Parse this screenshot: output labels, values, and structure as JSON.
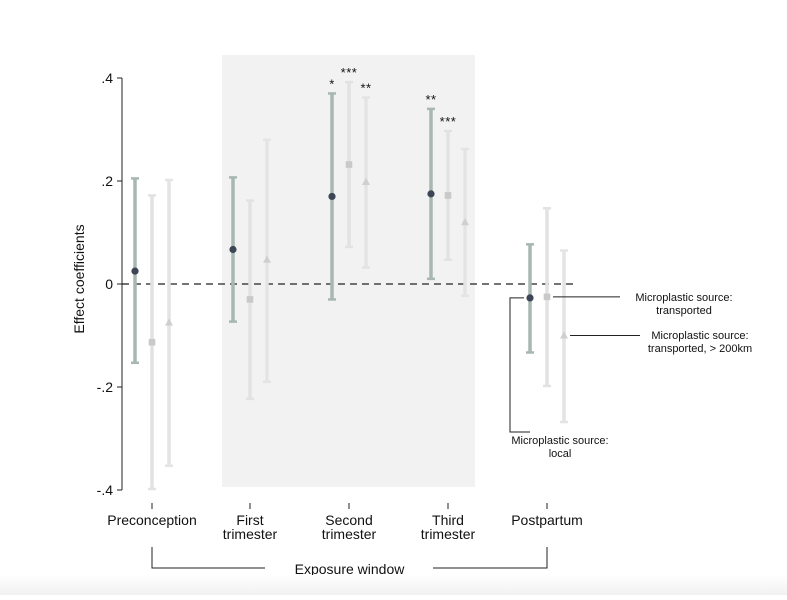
{
  "chart_data": {
    "type": "errorbar",
    "title": "",
    "xlabel": "Exposure window",
    "ylabel": "Effect coefficients",
    "ylim": [
      -0.4,
      0.4
    ],
    "yticks": [
      {
        "value": 0.4,
        "label": ".4"
      },
      {
        "value": 0.2,
        "label": ".2"
      },
      {
        "value": 0.0,
        "label": "0"
      },
      {
        "value": -0.2,
        "label": "-.2"
      },
      {
        "value": -0.4,
        "label": "-.4"
      }
    ],
    "categories": [
      {
        "lines": [
          "Preconception"
        ]
      },
      {
        "lines": [
          "First",
          "trimester"
        ]
      },
      {
        "lines": [
          "Second",
          "trimester"
        ]
      },
      {
        "lines": [
          "Third",
          "trimester"
        ]
      },
      {
        "lines": [
          "Postpartum"
        ]
      }
    ],
    "shaded_categories": [
      1,
      3
    ],
    "reference_line": 0,
    "series": [
      {
        "name": "Microplastic source: local",
        "marker": "circle",
        "color": "#3d4656",
        "bar_color": "#a7b7b1",
        "points": [
          {
            "y": 0.025,
            "lo": -0.153,
            "hi": 0.205,
            "sig": ""
          },
          {
            "y": 0.067,
            "lo": -0.073,
            "hi": 0.207,
            "sig": ""
          },
          {
            "y": 0.17,
            "lo": -0.03,
            "hi": 0.37,
            "sig": "*"
          },
          {
            "y": 0.175,
            "lo": 0.01,
            "hi": 0.34,
            "sig": "**"
          },
          {
            "y": -0.027,
            "lo": -0.133,
            "hi": 0.077,
            "sig": ""
          }
        ]
      },
      {
        "name": "Microplastic source: transported",
        "marker": "square",
        "color": "#c9c9c9",
        "bar_color": "#e2e2e2",
        "points": [
          {
            "y": -0.113,
            "lo": -0.398,
            "hi": 0.172,
            "sig": ""
          },
          {
            "y": -0.03,
            "lo": -0.223,
            "hi": 0.162,
            "sig": ""
          },
          {
            "y": 0.232,
            "lo": 0.072,
            "hi": 0.392,
            "sig": "***"
          },
          {
            "y": 0.172,
            "lo": 0.047,
            "hi": 0.297,
            "sig": "***"
          },
          {
            "y": -0.025,
            "lo": -0.198,
            "hi": 0.147,
            "sig": ""
          }
        ]
      },
      {
        "name": "Microplastic source: transported, > 200km",
        "marker": "triangle",
        "color": "#cfcfcf",
        "bar_color": "#e4e4e4",
        "points": [
          {
            "y": -0.075,
            "lo": -0.353,
            "hi": 0.202,
            "sig": ""
          },
          {
            "y": 0.047,
            "lo": -0.19,
            "hi": 0.28,
            "sig": ""
          },
          {
            "y": 0.198,
            "lo": 0.032,
            "hi": 0.362,
            "sig": "**"
          },
          {
            "y": 0.12,
            "lo": -0.023,
            "hi": 0.262,
            "sig": ""
          },
          {
            "y": -0.1,
            "lo": -0.268,
            "hi": 0.065,
            "sig": ""
          }
        ]
      }
    ],
    "annotations": [
      {
        "series": 0,
        "category": 4,
        "lines": [
          "Microplastic source:",
          "local"
        ]
      },
      {
        "series": 1,
        "category": 4,
        "lines": [
          "Microplastic source:",
          "transported"
        ]
      },
      {
        "series": 2,
        "category": 4,
        "lines": [
          "Microplastic source:",
          "transported, > 200km"
        ]
      }
    ],
    "grid": false,
    "legend": "none"
  }
}
